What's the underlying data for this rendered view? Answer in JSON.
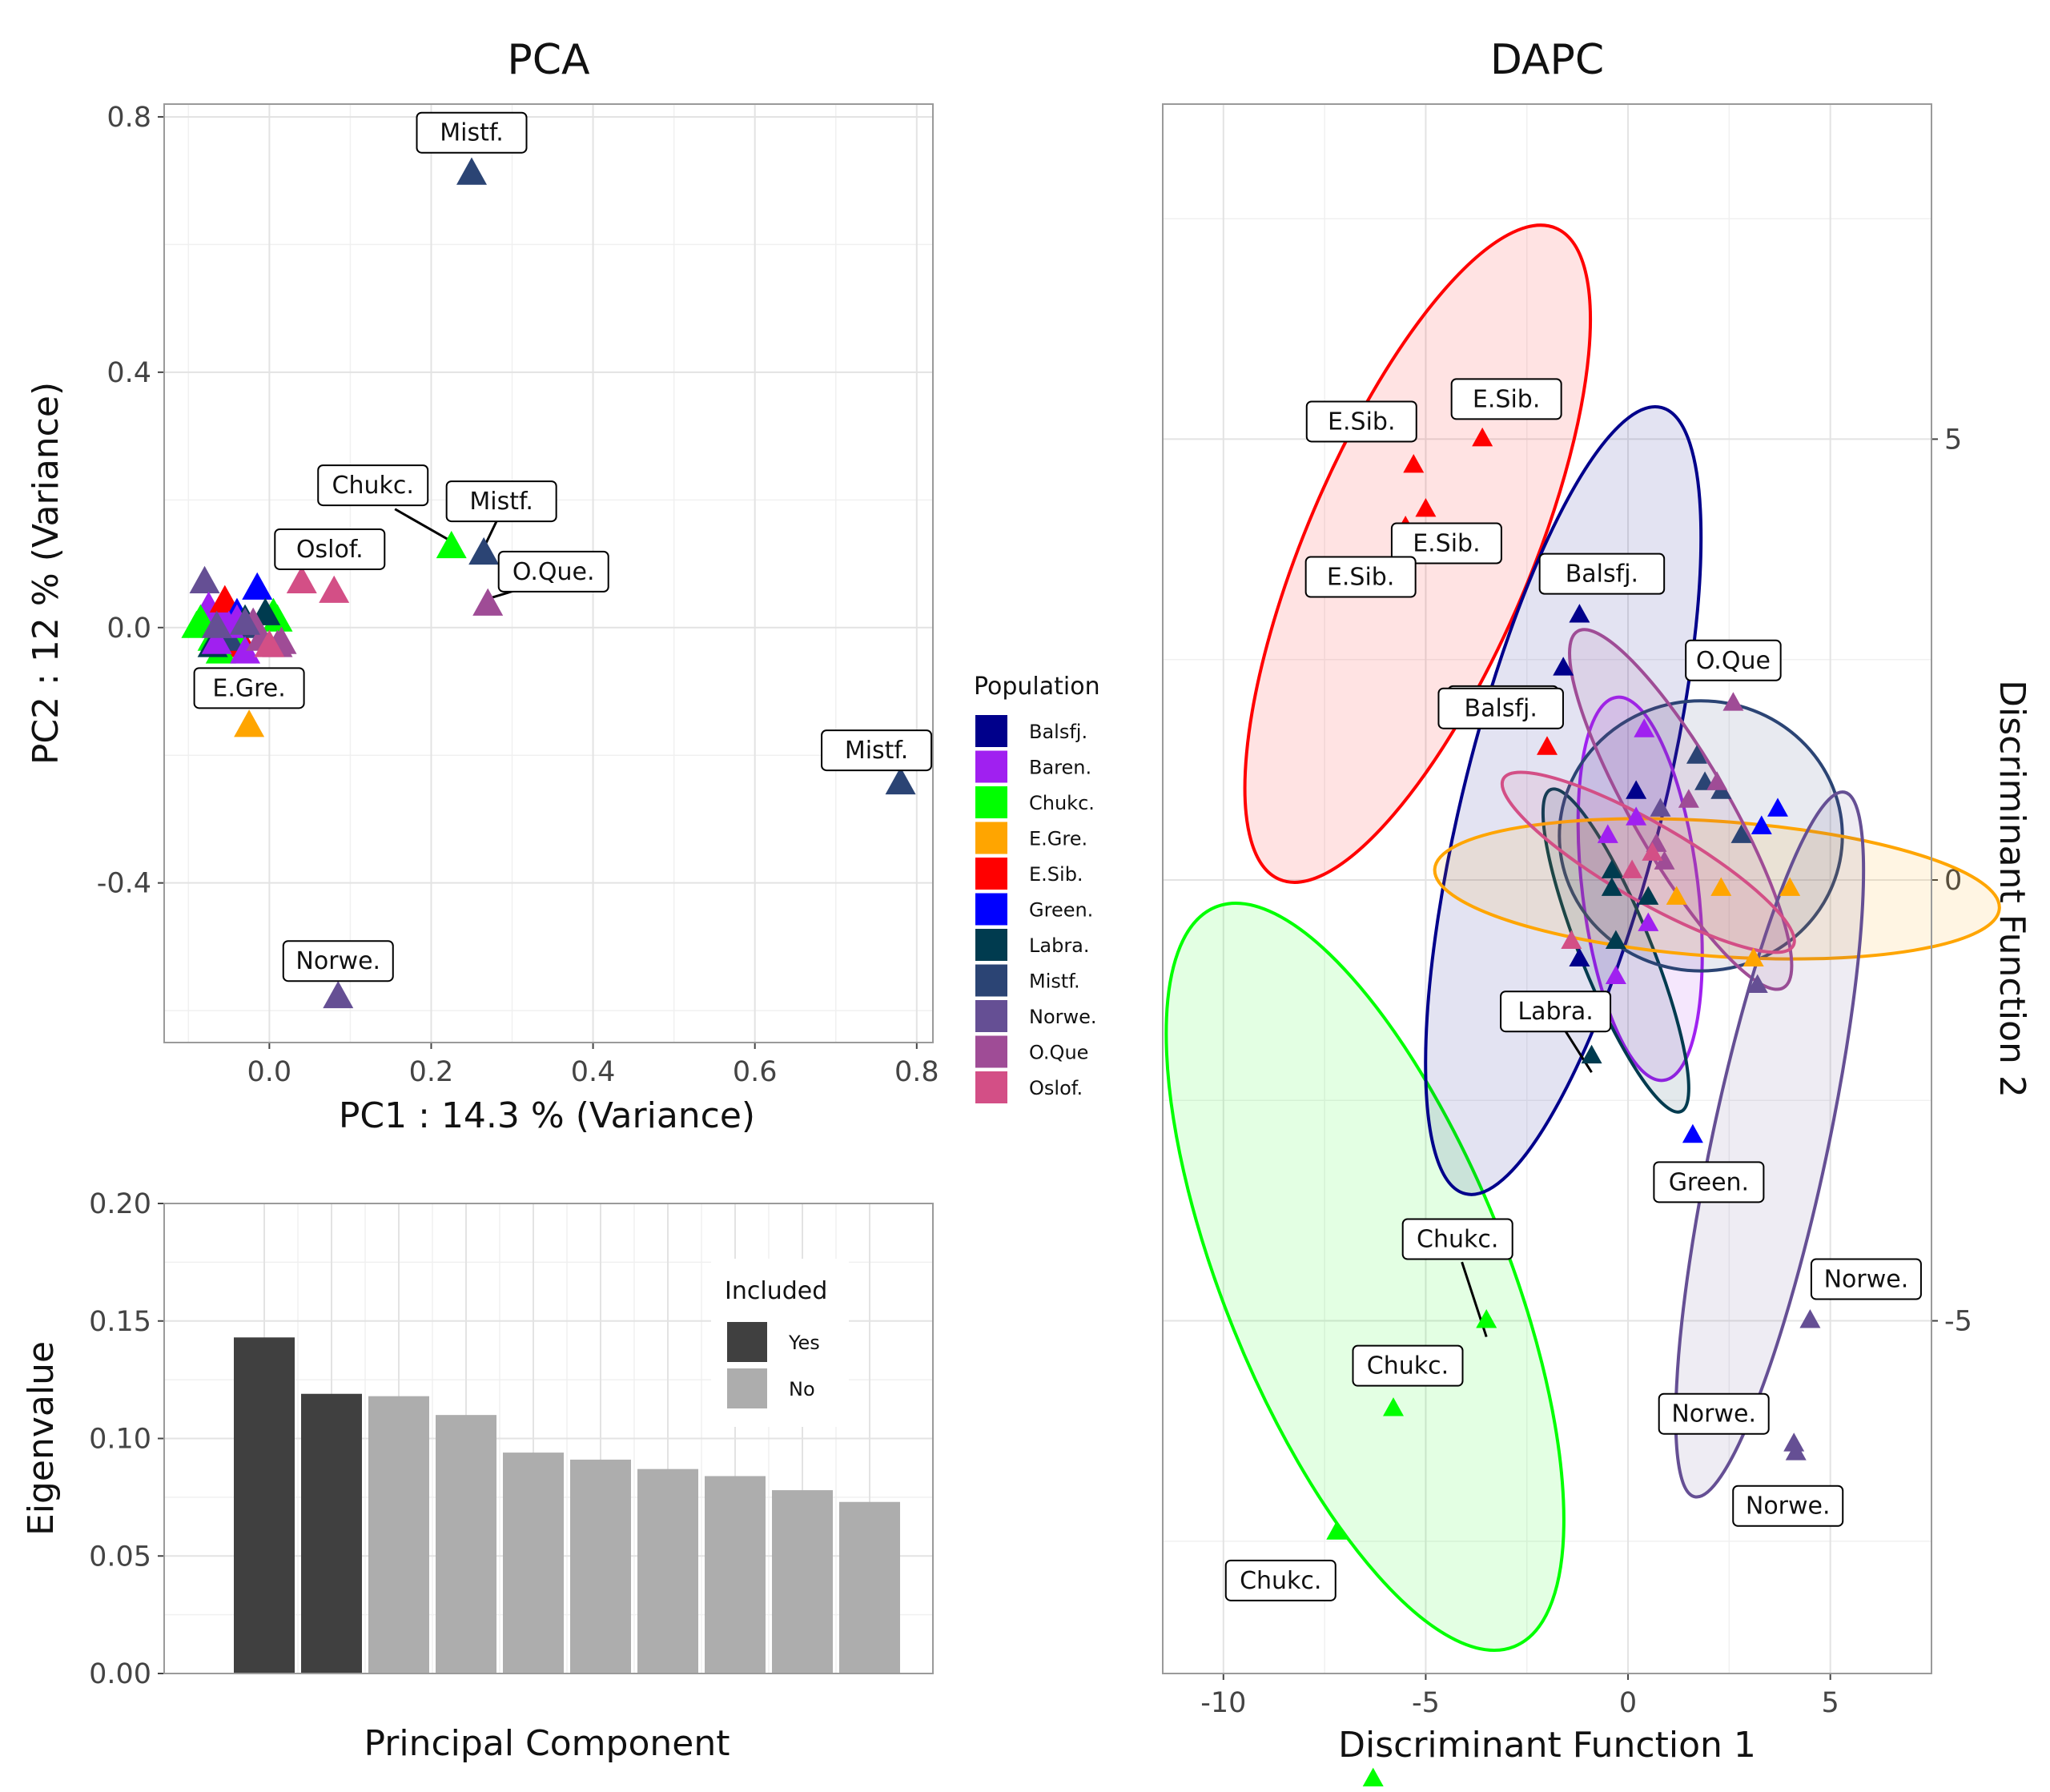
{
  "colors": {
    "Balsfj.": "#00008b",
    "Baren.": "#a020f0",
    "Chukc.": "#00ff00",
    "E.Gre.": "#ffa500",
    "E.Sib.": "#ff0000",
    "Green.": "#0000ff",
    "Labra.": "#003b4f",
    "Mistf.": "#2b4474",
    "Norwe.": "#654f94",
    "O.Que": "#9f4c96",
    "Oslof.": "#d34f86"
  },
  "legend": {
    "title": "Population",
    "items": [
      "Balsfj.",
      "Baren.",
      "Chukc.",
      "E.Gre.",
      "E.Sib.",
      "Green.",
      "Labra.",
      "Mistf.",
      "Norwe.",
      "O.Que",
      "Oslof."
    ]
  },
  "chart_data": [
    {
      "id": "pca",
      "type": "scatter",
      "title": "PCA",
      "xlabel": "PC1 :  14.3 % (Variance)",
      "ylabel": "PC2 :  12 % (Variance)",
      "xlim": [
        -0.13,
        0.82
      ],
      "ylim": [
        -0.65,
        0.82
      ],
      "xticks": [
        0.0,
        0.2,
        0.4,
        0.6,
        0.8
      ],
      "xtick_labels": [
        "0.0",
        "0.2",
        "0.4",
        "0.6",
        "0.8"
      ],
      "yticks": [
        -0.4,
        0.0,
        0.4,
        0.8
      ],
      "ytick_labels": [
        "-0.4",
        "0.0",
        "0.4",
        "0.8"
      ],
      "grid": true,
      "points": [
        {
          "x": 0.25,
          "y": 0.71,
          "group": "Mistf.",
          "label": "Mistf."
        },
        {
          "x": 0.225,
          "y": 0.125,
          "group": "Chukc.",
          "label": "Chukc."
        },
        {
          "x": 0.265,
          "y": 0.115,
          "group": "Mistf.",
          "label": "Mistf."
        },
        {
          "x": 0.27,
          "y": 0.035,
          "group": "O.Que",
          "label": "O.Que."
        },
        {
          "x": 0.04,
          "y": 0.07,
          "group": "Oslof.",
          "label": "Oslof."
        },
        {
          "x": 0.08,
          "y": 0.055,
          "group": "Oslof."
        },
        {
          "x": -0.025,
          "y": -0.155,
          "group": "E.Gre.",
          "label": "E.Gre."
        },
        {
          "x": 0.78,
          "y": -0.245,
          "group": "Mistf.",
          "label": "Mistf."
        },
        {
          "x": 0.085,
          "y": -0.58,
          "group": "Norwe.",
          "label": "Norwe."
        },
        {
          "x": -0.08,
          "y": 0.07,
          "group": "Norwe."
        },
        {
          "x": -0.075,
          "y": 0.03,
          "group": "Baren."
        },
        {
          "x": -0.06,
          "y": 0.02,
          "group": "Baren."
        },
        {
          "x": -0.055,
          "y": 0.04,
          "group": "E.Sib."
        },
        {
          "x": -0.045,
          "y": 0.01,
          "group": "E.Sib."
        },
        {
          "x": -0.04,
          "y": -0.01,
          "group": "E.Sib."
        },
        {
          "x": -0.035,
          "y": -0.03,
          "group": "E.Sib."
        },
        {
          "x": -0.09,
          "y": 0.0,
          "group": "Chukc."
        },
        {
          "x": -0.085,
          "y": 0.01,
          "group": "Chukc."
        },
        {
          "x": -0.07,
          "y": -0.02,
          "group": "Chukc."
        },
        {
          "x": 0.005,
          "y": 0.02,
          "group": "Chukc."
        },
        {
          "x": 0.01,
          "y": 0.01,
          "group": "Chukc."
        },
        {
          "x": -0.045,
          "y": -0.01,
          "group": "Chukc."
        },
        {
          "x": -0.06,
          "y": -0.04,
          "group": "Chukc."
        },
        {
          "x": -0.015,
          "y": 0.06,
          "group": "Green."
        },
        {
          "x": -0.04,
          "y": 0.02,
          "group": "Green."
        },
        {
          "x": -0.005,
          "y": 0.02,
          "group": "Labra."
        },
        {
          "x": -0.03,
          "y": 0.01,
          "group": "Labra."
        },
        {
          "x": -0.07,
          "y": -0.03,
          "group": "Labra."
        },
        {
          "x": -0.02,
          "y": 0.0,
          "group": "Mistf."
        },
        {
          "x": -0.05,
          "y": -0.02,
          "group": "Mistf."
        },
        {
          "x": -0.065,
          "y": -0.025,
          "group": "Baren."
        },
        {
          "x": -0.05,
          "y": 0.0,
          "group": "Baren."
        },
        {
          "x": -0.04,
          "y": 0.01,
          "group": "Baren."
        },
        {
          "x": -0.03,
          "y": -0.04,
          "group": "Baren."
        },
        {
          "x": 0.015,
          "y": -0.025,
          "group": "O.Que"
        },
        {
          "x": 0.01,
          "y": -0.03,
          "group": "O.Que"
        },
        {
          "x": -0.01,
          "y": -0.02,
          "group": "O.Que"
        },
        {
          "x": -0.02,
          "y": 0.005,
          "group": "O.Que"
        },
        {
          "x": 0.0,
          "y": -0.03,
          "group": "Oslof."
        },
        {
          "x": -0.065,
          "y": 0.0,
          "group": "Norwe."
        },
        {
          "x": -0.03,
          "y": 0.005,
          "group": "Norwe."
        }
      ]
    },
    {
      "id": "scree",
      "type": "bar",
      "title": "",
      "xlabel": "Principal Component",
      "ylabel": "Eigenvalue",
      "ylim": [
        0,
        0.2
      ],
      "yticks": [
        0.0,
        0.05,
        0.1,
        0.15,
        0.2
      ],
      "ytick_labels": [
        "0.00",
        "0.05",
        "0.10",
        "0.15",
        "0.20"
      ],
      "values": [
        0.143,
        0.119,
        0.118,
        0.11,
        0.094,
        0.091,
        0.087,
        0.084,
        0.078,
        0.073
      ],
      "included": [
        "Yes",
        "Yes",
        "No",
        "No",
        "No",
        "No",
        "No",
        "No",
        "No",
        "No"
      ],
      "legend": {
        "title": "Included",
        "items": [
          "Yes",
          "No"
        ],
        "colors": {
          "Yes": "#404040",
          "No": "#adadad"
        }
      },
      "grid": true
    },
    {
      "id": "dapc",
      "type": "scatter",
      "title": "DAPC",
      "xlabel": "Discriminant Function 1",
      "ylabel": "Discriminant Function 2",
      "xlim": [
        -11.5,
        7.5
      ],
      "ylim": [
        -9.0,
        8.8
      ],
      "xticks": [
        -10,
        -5,
        0,
        5
      ],
      "xtick_labels": [
        "-10",
        "-5",
        "0",
        "5"
      ],
      "yticks": [
        -5,
        0,
        5
      ],
      "ytick_labels": [
        "-5",
        "0",
        "5"
      ],
      "grid": true,
      "ellipses": [
        {
          "group": "E.Sib.",
          "cx": -5.2,
          "cy": 3.7,
          "a": 5.5,
          "b": 1.75,
          "angle_deg": -67
        },
        {
          "group": "Chukc.",
          "cx": -6.5,
          "cy": -4.5,
          "a": 6.2,
          "b": 2.2,
          "angle_deg": 68
        },
        {
          "group": "Balsfj.",
          "cx": -1.6,
          "cy": 0.9,
          "a": 6.3,
          "b": 1.55,
          "angle_deg": -76
        },
        {
          "group": "Baren.",
          "cx": 0.3,
          "cy": -0.1,
          "a": 3.0,
          "b": 0.9,
          "angle_deg": 83
        },
        {
          "group": "Labra.",
          "cx": -0.3,
          "cy": -0.8,
          "a": 2.7,
          "b": 0.55,
          "angle_deg": 68
        },
        {
          "group": "Mistf.",
          "cx": 1.8,
          "cy": 0.5,
          "a": 2.2,
          "b": 2.1,
          "angle_deg": 0
        },
        {
          "group": "E.Gre.",
          "cx": 2.2,
          "cy": -0.1,
          "a": 4.4,
          "b": 1.05,
          "angle_deg": 4
        },
        {
          "group": "O.Que",
          "cx": 1.3,
          "cy": 0.8,
          "a": 3.2,
          "b": 0.75,
          "angle_deg": 60
        },
        {
          "group": "Norwe.",
          "cx": 3.5,
          "cy": -3.0,
          "a": 5.6,
          "b": 0.9,
          "angle_deg": -78
        },
        {
          "group": "Oslof.",
          "cx": 0.5,
          "cy": 0.2,
          "a": 2.6,
          "b": 0.6,
          "angle_deg": 30
        }
      ],
      "points": [
        {
          "x": -3.6,
          "y": 5.0,
          "group": "E.Sib.",
          "label": "E.Sib."
        },
        {
          "x": -5.3,
          "y": 4.7,
          "group": "E.Sib.",
          "label": "E.Sib."
        },
        {
          "x": -5.0,
          "y": 4.2,
          "group": "E.Sib.",
          "label": "E.Sib."
        },
        {
          "x": -5.5,
          "y": 4.0,
          "group": "E.Sib.",
          "label": "E.Sib."
        },
        {
          "x": -2.0,
          "y": 1.5,
          "group": "E.Sib.",
          "label": "E.Sib."
        },
        {
          "x": -1.2,
          "y": 3.0,
          "group": "Balsfj.",
          "label": "Balsfj."
        },
        {
          "x": -1.6,
          "y": 2.4,
          "group": "Balsfj.",
          "label": "Balsfj."
        },
        {
          "x": 2.6,
          "y": 2.0,
          "group": "O.Que",
          "label": "O.Que"
        },
        {
          "x": -3.5,
          "y": -5.0,
          "group": "Chukc.",
          "label": "Chukc."
        },
        {
          "x": -5.8,
          "y": -6.0,
          "group": "Chukc.",
          "label": "Chukc."
        },
        {
          "x": -7.2,
          "y": -7.4,
          "group": "Chukc.",
          "label": "Chukc."
        },
        {
          "x": -6.3,
          "y": -10.2,
          "group": "Chukc.",
          "label": "Chukc."
        },
        {
          "x": -7.1,
          "y": -10.5,
          "group": "Chukc.",
          "label": "Chukc."
        },
        {
          "x": -0.9,
          "y": -2.0,
          "group": "Labra.",
          "label": "Labra."
        },
        {
          "x": 1.6,
          "y": -2.9,
          "group": "Green.",
          "label": "Green."
        },
        {
          "x": 4.5,
          "y": -5.0,
          "group": "Norwe.",
          "label": "Norwe."
        },
        {
          "x": 4.1,
          "y": -6.4,
          "group": "Norwe.",
          "label": "Norwe."
        },
        {
          "x": 4.15,
          "y": -6.5,
          "group": "Norwe.",
          "label": "Norwe."
        },
        {
          "x": -1.2,
          "y": -0.9,
          "group": "Balsfj."
        },
        {
          "x": 0.2,
          "y": 1.0,
          "group": "Balsfj."
        },
        {
          "x": 1.7,
          "y": 1.4,
          "group": "Mistf."
        },
        {
          "x": 1.9,
          "y": 1.1,
          "group": "Mistf."
        },
        {
          "x": 2.3,
          "y": 1.0,
          "group": "Mistf."
        },
        {
          "x": 2.8,
          "y": 0.5,
          "group": "Mistf."
        },
        {
          "x": -0.3,
          "y": -0.7,
          "group": "Labra."
        },
        {
          "x": -0.4,
          "y": -0.1,
          "group": "Labra."
        },
        {
          "x": 0.5,
          "y": -0.2,
          "group": "Labra."
        },
        {
          "x": -0.4,
          "y": 0.1,
          "group": "Labra."
        },
        {
          "x": 0.4,
          "y": 1.7,
          "group": "Baren."
        },
        {
          "x": 0.2,
          "y": 0.7,
          "group": "Baren."
        },
        {
          "x": -0.5,
          "y": 0.5,
          "group": "Baren."
        },
        {
          "x": 0.5,
          "y": -0.5,
          "group": "Baren."
        },
        {
          "x": -0.3,
          "y": -1.1,
          "group": "Baren."
        },
        {
          "x": 3.3,
          "y": 0.6,
          "group": "Green."
        },
        {
          "x": 3.7,
          "y": 0.8,
          "group": "Green."
        },
        {
          "x": 1.2,
          "y": -0.2,
          "group": "E.Gre."
        },
        {
          "x": 2.3,
          "y": -0.1,
          "group": "E.Gre."
        },
        {
          "x": 4.0,
          "y": -0.1,
          "group": "E.Gre."
        },
        {
          "x": 3.1,
          "y": -0.9,
          "group": "E.Gre."
        },
        {
          "x": 0.7,
          "y": 0.4,
          "group": "O.Que"
        },
        {
          "x": 1.5,
          "y": 0.9,
          "group": "O.Que"
        },
        {
          "x": 0.9,
          "y": 0.2,
          "group": "O.Que"
        },
        {
          "x": 2.2,
          "y": 1.1,
          "group": "O.Que"
        },
        {
          "x": 0.8,
          "y": 0.8,
          "group": "Norwe."
        },
        {
          "x": 3.2,
          "y": -1.2,
          "group": "Norwe."
        },
        {
          "x": 0.6,
          "y": 0.3,
          "group": "Oslof."
        },
        {
          "x": -1.4,
          "y": -0.7,
          "group": "Oslof."
        },
        {
          "x": 0.1,
          "y": 0.1,
          "group": "Oslof."
        }
      ]
    }
  ]
}
